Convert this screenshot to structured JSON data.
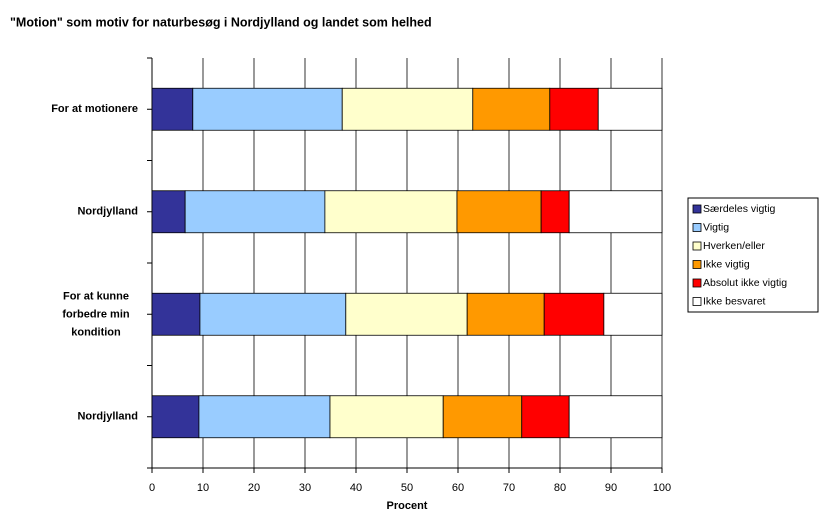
{
  "chart_data": {
    "type": "stacked-bar-horizontal",
    "title": "\"Motion\" som motiv for naturbesøg i Nordjylland og landet som helhed",
    "x_label": "Procent",
    "categories": [
      "For at motionere",
      "Nordjylland",
      "For at kunne forbedre min kondition",
      "Nordjylland"
    ],
    "series": [
      {
        "name": "Særdeles vigtig",
        "color": "#333399",
        "values": [
          8.0,
          6.5,
          9.4,
          9.2
        ]
      },
      {
        "name": "Vigtig",
        "color": "#99ccff",
        "values": [
          29.3,
          27.4,
          28.6,
          25.7
        ]
      },
      {
        "name": "Hverken/eller",
        "color": "#ffffcc",
        "values": [
          25.6,
          25.9,
          23.8,
          22.2
        ]
      },
      {
        "name": "Ikke vigtig",
        "color": "#ff9900",
        "values": [
          15.1,
          16.5,
          15.1,
          15.4
        ]
      },
      {
        "name": "Absolut ikke vigtig",
        "color": "#ff0000",
        "values": [
          9.5,
          5.5,
          11.7,
          9.3
        ]
      },
      {
        "name": "Ikke besvaret",
        "color": "#ffffff",
        "values": [
          12.5,
          18.2,
          11.4,
          18.2
        ]
      }
    ],
    "xlim": [
      0,
      100
    ],
    "xticks": [
      0,
      10,
      20,
      30,
      40,
      50,
      60,
      70,
      80,
      90,
      100
    ],
    "grid": true,
    "legend": "right"
  }
}
